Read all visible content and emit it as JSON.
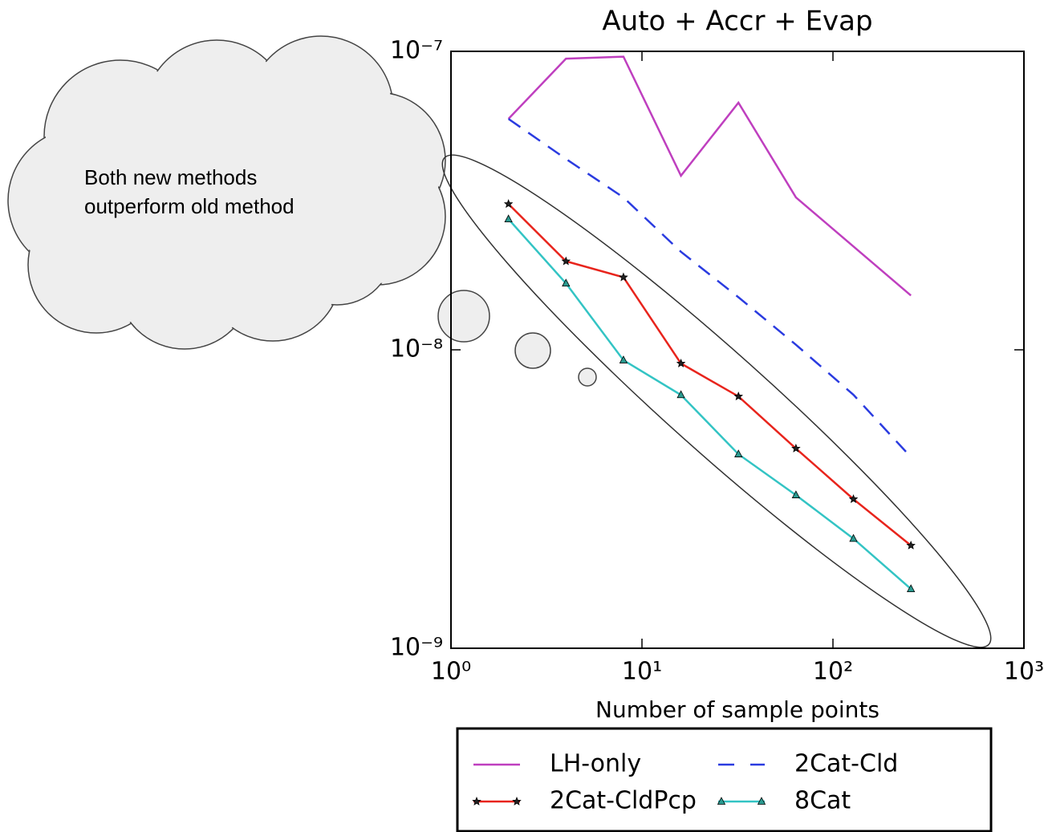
{
  "chart_data": {
    "type": "line",
    "title": "Auto + Accr + Evap",
    "xlabel": "Number of sample points",
    "annotation": "Both new methods outperform old method",
    "xscale": "log",
    "yscale": "log",
    "x": [
      2,
      4,
      8,
      16,
      32,
      64,
      128,
      256
    ],
    "xlim": [
      1,
      1000
    ],
    "ylim": [
      1e-09,
      1e-07
    ],
    "xticks": [
      {
        "value": 1,
        "label": "10⁰"
      },
      {
        "value": 10,
        "label": "10¹"
      },
      {
        "value": 100,
        "label": "10²"
      },
      {
        "value": 1000,
        "label": "10³"
      }
    ],
    "yticks": [
      {
        "value": 1e-09,
        "label": "10⁻⁹"
      },
      {
        "value": 1e-08,
        "label": "10⁻⁸"
      },
      {
        "value": 1e-07,
        "label": "10⁻⁷"
      }
    ],
    "legend": "bottom",
    "series": [
      {
        "name": "LH-only",
        "color": "#bf3fbf",
        "style": "solid",
        "marker": "none",
        "values": [
          5.94e-08,
          9.45e-08,
          9.6e-08,
          3.83e-08,
          6.73e-08,
          3.24e-08,
          2.22e-08,
          1.52e-08
        ]
      },
      {
        "name": "2Cat-Cld",
        "color": "#2a3be0",
        "style": "dashed",
        "marker": "none",
        "values": [
          5.94e-08,
          4.36e-08,
          3.24e-08,
          2.13e-08,
          1.5e-08,
          1.04e-08,
          7.07e-09,
          4.37e-09
        ]
      },
      {
        "name": "2Cat-CldPcp",
        "color": "#e8241c",
        "style": "solid",
        "marker": "star",
        "values": [
          3.08e-08,
          1.98e-08,
          1.75e-08,
          9e-09,
          6.98e-09,
          4.67e-09,
          3.16e-09,
          2.21e-09
        ]
      },
      {
        "name": "8Cat",
        "color": "#33c4c4",
        "style": "solid",
        "marker": "triangle",
        "values": [
          2.74e-08,
          1.67e-08,
          9.23e-09,
          7.06e-09,
          4.47e-09,
          3.26e-09,
          2.33e-09,
          1.58e-09
        ]
      }
    ]
  }
}
